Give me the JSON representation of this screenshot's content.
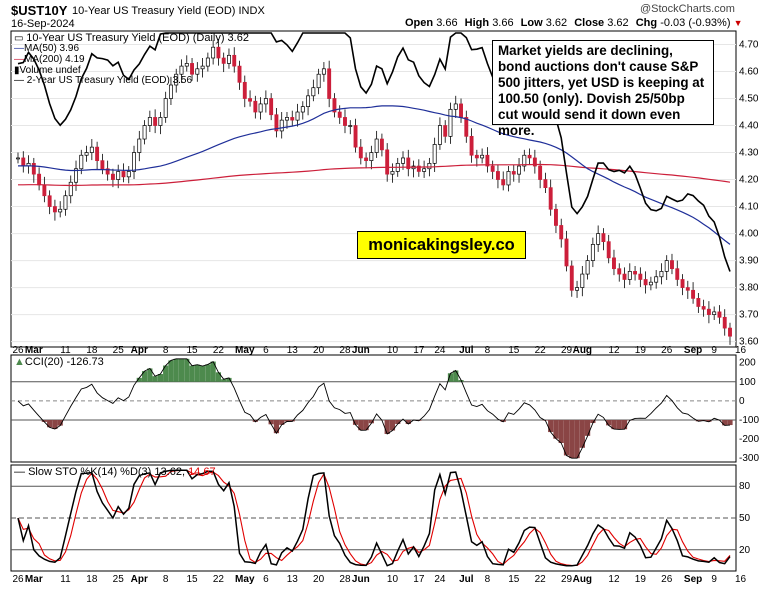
{
  "header": {
    "symbol": "$UST10Y",
    "name": "10-Year US Treasury Yield (EOD)",
    "exchange": "INDX",
    "date": "16-Sep-2024",
    "watermark": "@StockCharts.com",
    "open_label": "Open",
    "open": "3.66",
    "high_label": "High",
    "high": "3.66",
    "low_label": "Low",
    "low": "3.62",
    "close_label": "Close",
    "close": "3.62",
    "chg_label": "Chg",
    "chg": "-0.03 (-0.93%)",
    "chg_color": "#cc0000"
  },
  "legend": {
    "main": "10-Year US Treasury Yield (EOD) (Daily) 3.62",
    "ma50": "MA(50) 3.96",
    "ma200": "MA(200) 4.19",
    "volume": "Volume undef",
    "yield2": "2-Year US Treasury Yield (EOD) 3.56"
  },
  "annotation": "Market yields are declining, bond auctions don't cause S&P 500 jitters, yet USD is keeping at 100.50 (only). Dovish 25/50bp cut would send it down even more.",
  "brand": "monicakingsley.co",
  "colors": {
    "up": "#ffffff",
    "down": "#cc1f3a",
    "ma50": "#1f2f99",
    "ma200": "#cc1f3a",
    "yield2": "#000000",
    "cci_pos": "#4d8a4d",
    "cci_neg": "#8a4545",
    "stoch_k": "#000000",
    "stoch_d": "#e00000"
  },
  "cci_label": {
    "name": "CCI(20)",
    "value": "-126.73"
  },
  "stoch_label": {
    "name": "Slow STO %K(14) %D(3)",
    "k": "13.62",
    "d": "14.67"
  },
  "x_ticks": [
    {
      "label": "26",
      "i": 0
    },
    {
      "label": "Mar",
      "i": 3,
      "bold": true
    },
    {
      "label": "11",
      "i": 9
    },
    {
      "label": "18",
      "i": 14
    },
    {
      "label": "25",
      "i": 19
    },
    {
      "label": "Apr",
      "i": 23,
      "bold": true
    },
    {
      "label": "8",
      "i": 28
    },
    {
      "label": "15",
      "i": 33
    },
    {
      "label": "22",
      "i": 38
    },
    {
      "label": "May",
      "i": 43,
      "bold": true
    },
    {
      "label": "6",
      "i": 47
    },
    {
      "label": "13",
      "i": 52
    },
    {
      "label": "20",
      "i": 57
    },
    {
      "label": "28",
      "i": 62
    },
    {
      "label": "Jun",
      "i": 65,
      "bold": true
    },
    {
      "label": "10",
      "i": 71
    },
    {
      "label": "17",
      "i": 76
    },
    {
      "label": "24",
      "i": 80
    },
    {
      "label": "Jul",
      "i": 85,
      "bold": true
    },
    {
      "label": "8",
      "i": 89
    },
    {
      "label": "15",
      "i": 94
    },
    {
      "label": "22",
      "i": 99
    },
    {
      "label": "29",
      "i": 104
    },
    {
      "label": "Aug",
      "i": 107,
      "bold": true
    },
    {
      "label": "12",
      "i": 113
    },
    {
      "label": "19",
      "i": 118
    },
    {
      "label": "26",
      "i": 123
    },
    {
      "label": "Sep",
      "i": 128,
      "bold": true
    },
    {
      "label": "9",
      "i": 132
    },
    {
      "label": "16",
      "i": 137
    }
  ],
  "chart_data": [
    {
      "type": "line",
      "title": "10-Year US Treasury Yield (EOD) (Daily)",
      "y_ticks": [
        3.6,
        3.7,
        3.8,
        3.9,
        4.0,
        4.1,
        4.2,
        4.3,
        4.4,
        4.5,
        4.6,
        4.7
      ],
      "ylim": [
        3.58,
        4.75
      ],
      "x_range": "26-Feb-2024 to 16-Sep-2024",
      "series": [
        {
          "name": "10-Year US Treasury Yield (EOD) (Daily)",
          "style": "candlestick",
          "values": [
            4.28,
            4.25,
            4.26,
            4.22,
            4.18,
            4.14,
            4.1,
            4.08,
            4.09,
            4.14,
            4.19,
            4.24,
            4.29,
            4.3,
            4.32,
            4.27,
            4.24,
            4.22,
            4.2,
            4.23,
            4.21,
            4.23,
            4.3,
            4.35,
            4.4,
            4.43,
            4.4,
            4.43,
            4.5,
            4.55,
            4.59,
            4.62,
            4.63,
            4.59,
            4.61,
            4.62,
            4.65,
            4.69,
            4.65,
            4.63,
            4.66,
            4.62,
            4.56,
            4.5,
            4.49,
            4.45,
            4.48,
            4.5,
            4.44,
            4.38,
            4.42,
            4.43,
            4.42,
            4.45,
            4.47,
            4.51,
            4.54,
            4.59,
            4.61,
            4.5,
            4.45,
            4.43,
            4.4,
            4.4,
            4.32,
            4.28,
            4.27,
            4.3,
            4.35,
            4.31,
            4.22,
            4.23,
            4.26,
            4.28,
            4.24,
            4.25,
            4.23,
            4.24,
            4.26,
            4.33,
            4.4,
            4.36,
            4.46,
            4.48,
            4.43,
            4.36,
            4.29,
            4.28,
            4.29,
            4.25,
            4.23,
            4.2,
            4.18,
            4.23,
            4.22,
            4.25,
            4.29,
            4.28,
            4.25,
            4.2,
            4.17,
            4.09,
            4.03,
            3.98,
            3.88,
            3.79,
            3.8,
            3.85,
            3.9,
            3.96,
            4.0,
            3.97,
            3.91,
            3.87,
            3.85,
            3.83,
            3.86,
            3.85,
            3.83,
            3.81,
            3.82,
            3.84,
            3.86,
            3.9,
            3.87,
            3.83,
            3.8,
            3.79,
            3.76,
            3.73,
            3.72,
            3.7,
            3.71,
            3.69,
            3.65,
            3.62
          ]
        },
        {
          "name": "MA(50)",
          "values_end": 3.96
        },
        {
          "name": "MA(200)",
          "values_end": 4.19
        },
        {
          "name": "2-Year US Treasury Yield (EOD)",
          "values_end": 3.56
        }
      ]
    },
    {
      "type": "area",
      "title": "CCI(20)",
      "y_ticks": [
        200,
        100,
        0,
        -100,
        -200,
        -300
      ],
      "ylim": [
        -320,
        240
      ],
      "reference_lines": [
        100,
        0,
        -100
      ],
      "values_end": -126.73
    },
    {
      "type": "line",
      "title": "Slow STO %K(14) %D(3)",
      "y_ticks": [
        80,
        50,
        20
      ],
      "ylim": [
        0,
        100
      ],
      "reference_lines": [
        80,
        50,
        20
      ],
      "series": [
        {
          "name": "%K(14)",
          "values_end": 13.62
        },
        {
          "name": "%D(3)",
          "values_end": 14.67
        }
      ]
    }
  ]
}
